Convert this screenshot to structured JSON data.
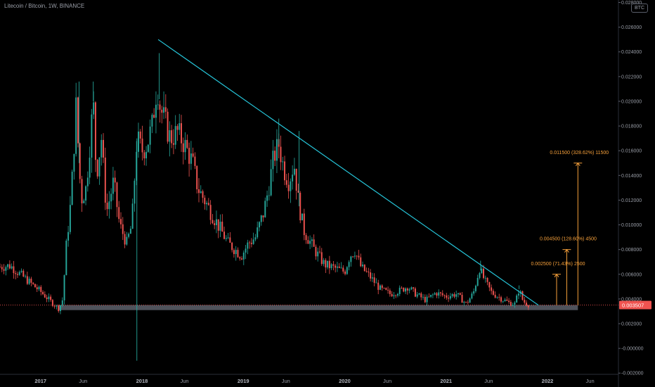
{
  "header": {
    "symbol_title": "Litecoin / Bitcoin, 1W, BINANCE",
    "currency": "BTC"
  },
  "colors": {
    "background": "#000000",
    "up_candle": "#26a69a",
    "down_candle": "#ef5350",
    "trendline": "#26c6da",
    "projection": "#f7a13b",
    "support_zone": "#5d606b",
    "price_tag": "#ef5350",
    "axis_text": "#9a9ea8"
  },
  "chart_data": {
    "type": "candlestick",
    "title": "Litecoin / Bitcoin, 1W, BINANCE",
    "y_axis": {
      "side": "right",
      "ylim": [
        -0.0021,
        0.0282
      ],
      "ticks": [
        "0.028000",
        "0.026000",
        "0.024000",
        "0.022000",
        "0.020000",
        "0.018000",
        "0.016000",
        "0.014000",
        "0.012000",
        "0.010000",
        "0.008000",
        "0.006000",
        "0.004000",
        "0.002000",
        "-0.000000",
        "-0.002000"
      ],
      "tick_values": [
        0.028,
        0.026,
        0.024,
        0.022,
        0.02,
        0.018,
        0.016,
        0.014,
        0.012,
        0.01,
        0.008,
        0.006,
        0.004,
        0.002,
        0.0,
        -0.002
      ]
    },
    "x_axis": {
      "labels": [
        {
          "text": "2017",
          "t": 2017.0,
          "bold": true
        },
        {
          "text": "Jun",
          "t": 2017.42,
          "bold": false
        },
        {
          "text": "2018",
          "t": 2018.0,
          "bold": true
        },
        {
          "text": "Jun",
          "t": 2018.42,
          "bold": false
        },
        {
          "text": "2019",
          "t": 2019.0,
          "bold": true
        },
        {
          "text": "Jun",
          "t": 2019.42,
          "bold": false
        },
        {
          "text": "2020",
          "t": 2020.0,
          "bold": true
        },
        {
          "text": "Jun",
          "t": 2020.42,
          "bold": false
        },
        {
          "text": "2021",
          "t": 2021.0,
          "bold": true
        },
        {
          "text": "Jun",
          "t": 2021.42,
          "bold": false
        },
        {
          "text": "2022",
          "t": 2022.0,
          "bold": true
        },
        {
          "text": "Jun",
          "t": 2022.42,
          "bold": false
        }
      ]
    },
    "price_path": [
      [
        2016.6,
        0.0066
      ],
      [
        2016.7,
        0.0067
      ],
      [
        2016.8,
        0.006
      ],
      [
        2016.9,
        0.0053
      ],
      [
        2017.0,
        0.0046
      ],
      [
        2017.1,
        0.0038
      ],
      [
        2017.18,
        0.0032
      ],
      [
        2017.22,
        0.004
      ],
      [
        2017.25,
        0.008
      ],
      [
        2017.3,
        0.012
      ],
      [
        2017.35,
        0.0195
      ],
      [
        2017.4,
        0.012
      ],
      [
        2017.45,
        0.013
      ],
      [
        2017.52,
        0.02
      ],
      [
        2017.55,
        0.014
      ],
      [
        2017.6,
        0.017
      ],
      [
        2017.65,
        0.011
      ],
      [
        2017.72,
        0.0135
      ],
      [
        2017.78,
        0.01
      ],
      [
        2017.85,
        0.0085
      ],
      [
        2017.9,
        0.01
      ],
      [
        2017.95,
        0.017
      ],
      [
        2018.0,
        0.016
      ],
      [
        2018.05,
        0.0165
      ],
      [
        2018.1,
        0.018
      ],
      [
        2018.15,
        0.0215
      ],
      [
        2018.18,
        0.0195
      ],
      [
        2018.22,
        0.0185
      ],
      [
        2018.28,
        0.017
      ],
      [
        2018.35,
        0.0175
      ],
      [
        2018.42,
        0.0165
      ],
      [
        2018.5,
        0.015
      ],
      [
        2018.55,
        0.013
      ],
      [
        2018.65,
        0.0115
      ],
      [
        2018.75,
        0.01
      ],
      [
        2018.85,
        0.0085
      ],
      [
        2018.92,
        0.008
      ],
      [
        2018.98,
        0.0075
      ],
      [
        2019.05,
        0.0085
      ],
      [
        2019.12,
        0.009
      ],
      [
        2019.2,
        0.011
      ],
      [
        2019.25,
        0.013
      ],
      [
        2019.3,
        0.0155
      ],
      [
        2019.35,
        0.0165
      ],
      [
        2019.4,
        0.0145
      ],
      [
        2019.45,
        0.0135
      ],
      [
        2019.5,
        0.015
      ],
      [
        2019.55,
        0.0115
      ],
      [
        2019.6,
        0.0095
      ],
      [
        2019.7,
        0.008
      ],
      [
        2019.8,
        0.0068
      ],
      [
        2019.9,
        0.0065
      ],
      [
        2020.0,
        0.0062
      ],
      [
        2020.05,
        0.0075
      ],
      [
        2020.1,
        0.0079
      ],
      [
        2020.16,
        0.0066
      ],
      [
        2020.25,
        0.0058
      ],
      [
        2020.35,
        0.0048
      ],
      [
        2020.45,
        0.0044
      ],
      [
        2020.55,
        0.0047
      ],
      [
        2020.62,
        0.005
      ],
      [
        2020.7,
        0.0044
      ],
      [
        2020.8,
        0.0039
      ],
      [
        2020.9,
        0.0045
      ],
      [
        2021.0,
        0.0042
      ],
      [
        2021.1,
        0.0044
      ],
      [
        2021.2,
        0.0036
      ],
      [
        2021.27,
        0.0045
      ],
      [
        2021.33,
        0.0065
      ],
      [
        2021.38,
        0.0055
      ],
      [
        2021.45,
        0.0045
      ],
      [
        2021.55,
        0.004
      ],
      [
        2021.62,
        0.0037
      ],
      [
        2021.68,
        0.0036
      ],
      [
        2021.72,
        0.0048
      ],
      [
        2021.76,
        0.0038
      ],
      [
        2021.82,
        0.0035
      ]
    ],
    "wick_extremes": [
      {
        "t": 2017.38,
        "value": 0.0216
      },
      {
        "t": 2017.52,
        "value": 0.0216
      },
      {
        "t": 2017.95,
        "value": -0.001
      },
      {
        "t": 2018.17,
        "value": 0.0239
      },
      {
        "t": 2019.35,
        "value": 0.0186
      },
      {
        "t": 2019.55,
        "value": 0.0176
      },
      {
        "t": 2021.34,
        "value": 0.0071
      },
      {
        "t": 2021.72,
        "value": 0.0051
      }
    ],
    "trendline": {
      "start": {
        "t": 2018.16,
        "value": 0.025
      },
      "end": {
        "t": 2021.91,
        "value": 0.0035
      }
    },
    "support_zone": {
      "t_start": 2017.18,
      "t_end": 2022.3,
      "top": 0.0035,
      "bottom": 0.0031
    },
    "last_price": {
      "value": 0.003507,
      "label": "0.003507"
    },
    "projections": [
      {
        "label": "0.002500 (71.43%) 2500",
        "t": 2022.09,
        "base": 0.0035,
        "target": 0.006
      },
      {
        "label": "0.004500 (128.60%) 4500",
        "t": 2022.19,
        "base": 0.0035,
        "target": 0.008
      },
      {
        "label": "0.011500 (328.62%) 11500",
        "t": 2022.3,
        "base": 0.0035,
        "target": 0.015
      }
    ]
  }
}
